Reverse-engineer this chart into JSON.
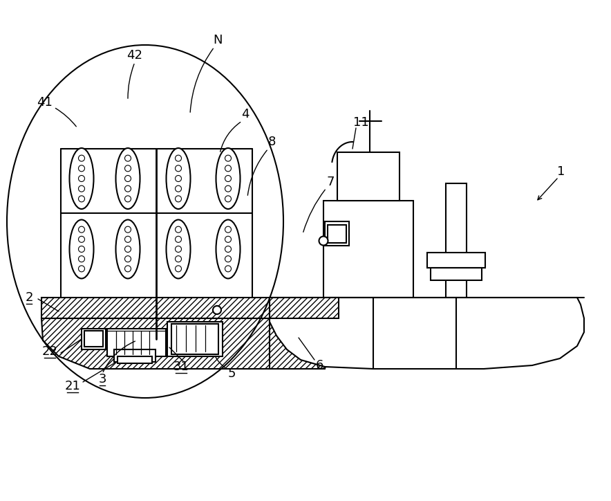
{
  "bg_color": "#ffffff",
  "line_color": "#000000",
  "figsize": [
    8.84,
    7.24
  ],
  "dpi": 100
}
